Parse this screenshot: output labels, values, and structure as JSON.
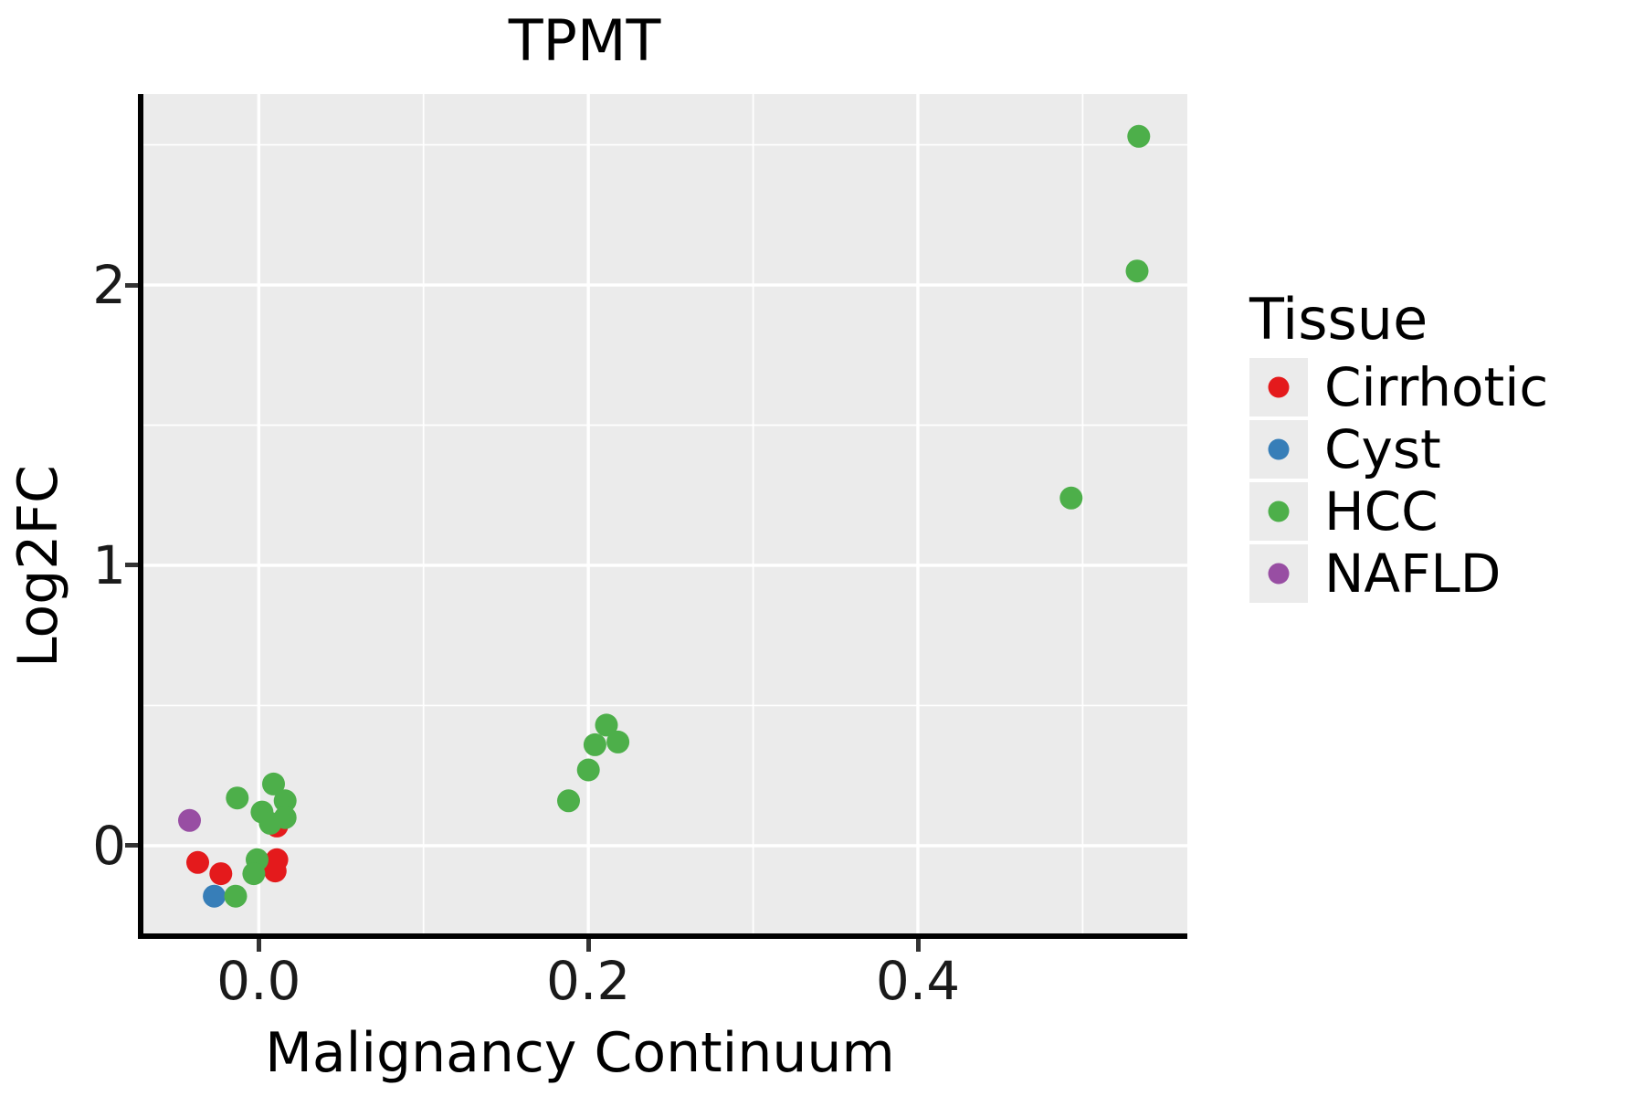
{
  "chart_data": {
    "type": "scatter",
    "title": "TPMT",
    "xlabel": "Malignancy Continuum",
    "ylabel": "Log2FC",
    "xlim": [
      -0.07,
      0.5635
    ],
    "ylim": [
      -0.313,
      2.681
    ],
    "x_major_ticks": [
      0.0,
      0.2,
      0.4
    ],
    "x_tick_labels": [
      "0.0",
      "0.2",
      "0.4"
    ],
    "x_minor_ticks": [
      0.1,
      0.3,
      0.5
    ],
    "y_major_ticks": [
      0,
      1,
      2
    ],
    "y_tick_labels": [
      "0",
      "1",
      "2"
    ],
    "y_minor_ticks": [
      0.5,
      1.5,
      2.5
    ],
    "grid": "white major and minor gridlines on gray panel",
    "legend_title": "Tissue",
    "legend_position": "right",
    "panel_background": "#EBEBEB",
    "gridline_color": "#FFFFFF",
    "point_radius_px": 12.5,
    "series": [
      {
        "name": "Cirrhotic",
        "color": "#E41A1C",
        "points": [
          [
            -0.037,
            -0.06
          ],
          [
            -0.023,
            -0.1
          ],
          [
            0.011,
            0.07
          ],
          [
            0.011,
            -0.05
          ],
          [
            0.01,
            -0.09
          ]
        ]
      },
      {
        "name": "Cyst",
        "color": "#377EB8",
        "points": [
          [
            -0.027,
            -0.18
          ]
        ]
      },
      {
        "name": "HCC",
        "color": "#4DAF4A",
        "points": [
          [
            -0.014,
            -0.18
          ],
          [
            -0.001,
            -0.05
          ],
          [
            -0.003,
            -0.1
          ],
          [
            -0.013,
            0.17
          ],
          [
            0.009,
            0.22
          ],
          [
            0.016,
            0.16
          ],
          [
            0.002,
            0.12
          ],
          [
            0.007,
            0.08
          ],
          [
            0.016,
            0.1
          ],
          [
            0.188,
            0.16
          ],
          [
            0.2,
            0.27
          ],
          [
            0.204,
            0.36
          ],
          [
            0.211,
            0.43
          ],
          [
            0.218,
            0.37
          ],
          [
            0.493,
            1.24
          ],
          [
            0.533,
            2.05
          ],
          [
            0.534,
            2.53
          ]
        ]
      },
      {
        "name": "NAFLD",
        "color": "#984EA3",
        "points": [
          [
            -0.042,
            0.09
          ]
        ]
      }
    ]
  }
}
